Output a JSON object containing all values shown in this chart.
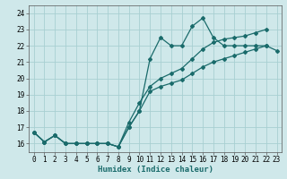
{
  "xlabel": "Humidex (Indice chaleur)",
  "xlim": [
    -0.5,
    23.5
  ],
  "ylim": [
    15.5,
    24.5
  ],
  "yticks": [
    16,
    17,
    18,
    19,
    20,
    21,
    22,
    23,
    24
  ],
  "xticks": [
    0,
    1,
    2,
    3,
    4,
    5,
    6,
    7,
    8,
    9,
    10,
    11,
    12,
    13,
    14,
    15,
    16,
    17,
    18,
    19,
    20,
    21,
    22,
    23
  ],
  "bg_color": "#cfe8ea",
  "grid_color": "#a8cfd2",
  "line_color": "#1a6b6b",
  "line1_x": [
    0,
    1,
    2,
    3,
    4,
    5,
    6,
    7,
    8,
    9,
    10,
    11,
    12,
    13,
    14,
    15,
    16,
    17,
    18,
    19,
    20,
    21,
    22,
    23
  ],
  "line1_y": [
    16.7,
    16.1,
    16.5,
    16.0,
    16.0,
    16.0,
    16.0,
    16.0,
    15.8,
    17.0,
    18.0,
    21.2,
    22.5,
    22.0,
    22.0,
    23.2,
    23.7,
    22.5,
    22.0,
    22.0,
    22.0,
    22.0,
    22.0,
    null
  ],
  "line2_x": [
    0,
    1,
    2,
    3,
    4,
    5,
    6,
    7,
    8,
    9,
    10,
    11,
    12,
    13,
    14,
    15,
    16,
    17,
    18,
    19,
    20,
    21,
    22,
    23
  ],
  "line2_y": [
    16.7,
    16.1,
    16.5,
    16.0,
    16.0,
    16.0,
    16.0,
    16.0,
    15.8,
    17.0,
    18.0,
    19.2,
    19.5,
    19.7,
    19.9,
    20.3,
    20.7,
    21.0,
    21.2,
    21.4,
    21.6,
    21.8,
    22.0,
    21.7
  ],
  "line3_x": [
    0,
    1,
    2,
    3,
    4,
    5,
    6,
    7,
    8,
    9,
    10,
    11,
    12,
    13,
    14,
    15,
    16,
    17,
    18,
    19,
    20,
    21,
    22,
    23
  ],
  "line3_y": [
    16.7,
    16.1,
    16.5,
    16.0,
    16.0,
    16.0,
    16.0,
    16.0,
    15.8,
    17.3,
    18.5,
    19.5,
    20.0,
    20.3,
    20.6,
    21.2,
    21.8,
    22.2,
    22.4,
    22.5,
    22.6,
    22.8,
    23.0,
    null
  ],
  "marker_size": 2.0,
  "linewidth": 0.9,
  "tick_fontsize": 5.5,
  "label_fontsize": 6.5
}
